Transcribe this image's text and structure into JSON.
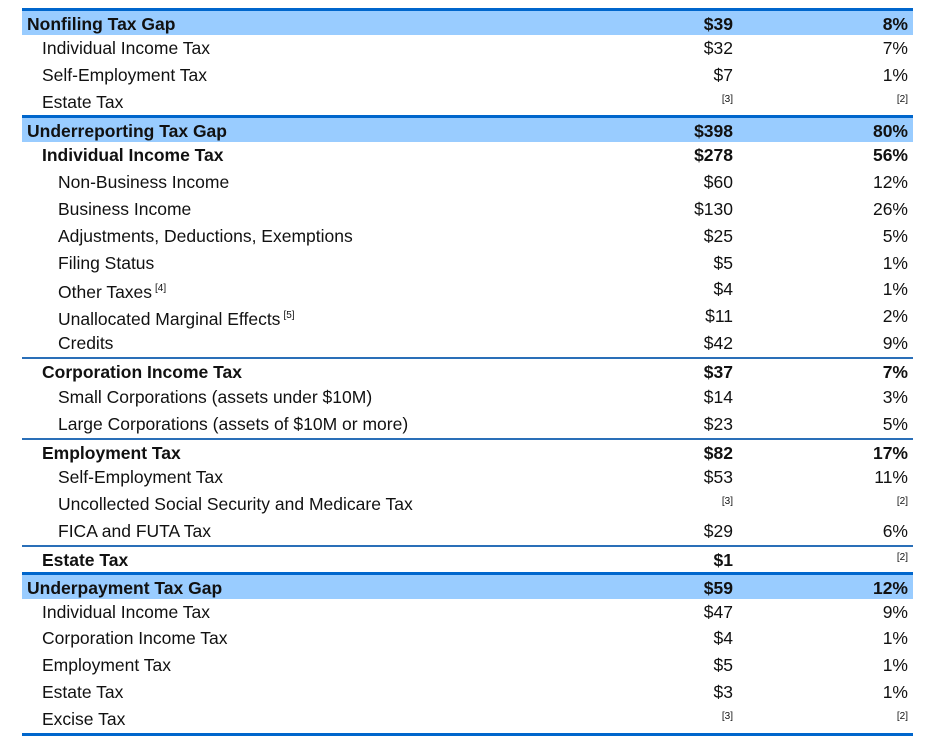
{
  "colors": {
    "section_bg": "#99ccff",
    "rule": "#0066cc"
  },
  "rows": [
    {
      "label": "Nonfiling Tax Gap",
      "value": "$39",
      "pct": "8%",
      "type": "section",
      "level": 0
    },
    {
      "label": "Individual Income Tax",
      "value": "$32",
      "pct": "7%",
      "type": "item",
      "level": 1
    },
    {
      "label": "Self-Employment Tax",
      "value": "$7",
      "pct": "1%",
      "type": "item",
      "level": 1
    },
    {
      "label": "Estate Tax",
      "value": "[3]",
      "pct": "[2]",
      "type": "item",
      "level": 1
    },
    {
      "label": "Underreporting Tax Gap",
      "value": "$398",
      "pct": "80%",
      "type": "section",
      "level": 0
    },
    {
      "label": "Individual Income Tax",
      "value": "$278",
      "pct": "56%",
      "type": "subhead",
      "level": 1
    },
    {
      "label": "Non-Business Income",
      "value": "$60",
      "pct": "12%",
      "type": "item",
      "level": 2
    },
    {
      "label": "Business Income",
      "value": "$130",
      "pct": "26%",
      "type": "item",
      "level": 2
    },
    {
      "label": "Adjustments, Deductions, Exemptions",
      "value": "$25",
      "pct": "5%",
      "type": "item",
      "level": 2
    },
    {
      "label": "Filing Status",
      "value": "$5",
      "pct": "1%",
      "type": "item",
      "level": 2
    },
    {
      "label": "Other Taxes",
      "footnote": "[4]",
      "value": "$4",
      "pct": "1%",
      "type": "item",
      "level": 2
    },
    {
      "label": "Unallocated Marginal Effects",
      "footnote": "[5]",
      "value": "$11",
      "pct": "2%",
      "type": "item",
      "level": 2
    },
    {
      "label": "Credits",
      "value": "$42",
      "pct": "9%",
      "type": "item",
      "level": 2
    },
    {
      "label": "Corporation Income Tax",
      "value": "$37",
      "pct": "7%",
      "type": "group",
      "level": 1
    },
    {
      "label": "Small Corporations (assets under $10M)",
      "value": "$14",
      "pct": "3%",
      "type": "item",
      "level": 2
    },
    {
      "label": "Large Corporations (assets of $10M or more)",
      "value": "$23",
      "pct": "5%",
      "type": "item",
      "level": 2
    },
    {
      "label": "Employment Tax",
      "value": "$82",
      "pct": "17%",
      "type": "group",
      "level": 1
    },
    {
      "label": "Self-Employment Tax",
      "value": "$53",
      "pct": "11%",
      "type": "item",
      "level": 2
    },
    {
      "label": "Uncollected Social Security and Medicare Tax",
      "value": "[3]",
      "pct": "[2]",
      "type": "item",
      "level": 2
    },
    {
      "label": "FICA and FUTA Tax",
      "value": "$29",
      "pct": "6%",
      "type": "item",
      "level": 2
    },
    {
      "label": "Estate Tax",
      "value": "$1",
      "pct": "[2]",
      "type": "group",
      "level": 1
    },
    {
      "label": "Underpayment Tax Gap",
      "value": "$59",
      "pct": "12%",
      "type": "section",
      "level": 0
    },
    {
      "label": "Individual Income Tax",
      "value": "$47",
      "pct": "9%",
      "type": "item",
      "level": 1
    },
    {
      "label": "Corporation Income Tax",
      "value": "$4",
      "pct": "1%",
      "type": "item",
      "level": 1
    },
    {
      "label": "Employment Tax",
      "value": "$5",
      "pct": "1%",
      "type": "item",
      "level": 1
    },
    {
      "label": "Estate Tax",
      "value": "$3",
      "pct": "1%",
      "type": "item",
      "level": 1
    },
    {
      "label": "Excise Tax",
      "value": "[3]",
      "pct": "[2]",
      "type": "item",
      "level": 1
    }
  ]
}
